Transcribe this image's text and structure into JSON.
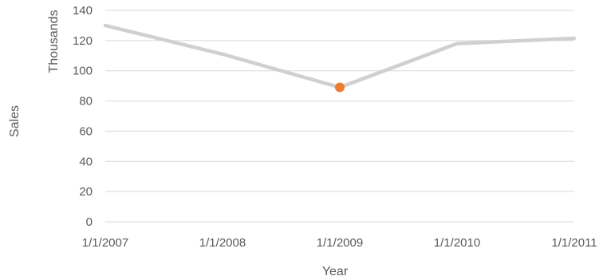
{
  "chart_data": {
    "type": "line",
    "x": [
      "1/1/2007",
      "1/1/2008",
      "1/1/2009",
      "1/1/2010",
      "1/1/2011"
    ],
    "series": [
      {
        "values": [
          130000,
          111000,
          89000,
          118000,
          121500
        ],
        "color": "#d0d0d0"
      }
    ],
    "highlight_point": {
      "x": "1/1/2009",
      "y": 89000,
      "color": "#ed7d31"
    },
    "xlabel": "Year",
    "ylabel": "Sales",
    "yunit_label": "Thousands",
    "yticks": [
      "0",
      "20",
      "40",
      "60",
      "80",
      "100",
      "120",
      "140"
    ],
    "ylim": [
      0,
      140000
    ],
    "grid": true
  }
}
